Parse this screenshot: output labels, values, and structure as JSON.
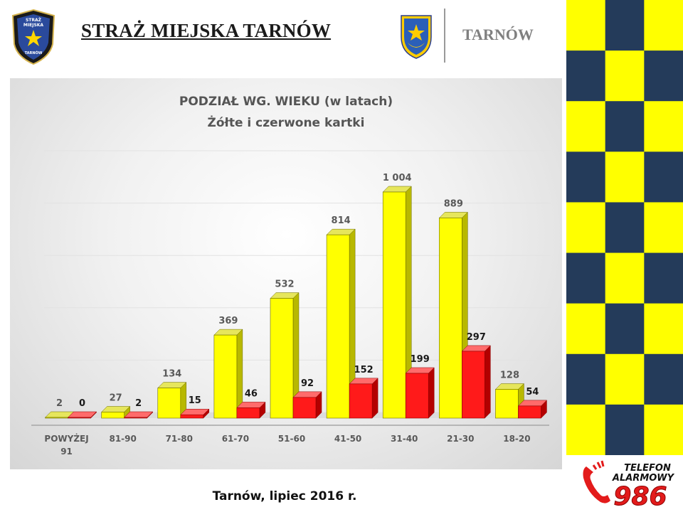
{
  "header": {
    "title": "STRAŻ MIEJSKA TARNÓW",
    "city": "TARNÓW",
    "badge_text": [
      "STRAŻ",
      "MIEJSKA",
      "TARNÓW"
    ]
  },
  "footer": {
    "date": "Tarnów, lipiec 2016 r."
  },
  "alarm": {
    "line1": "TELEFON",
    "line2": "ALARMOWY",
    "number": "986",
    "icon": "phone-icon"
  },
  "colors": {
    "navy": "#243b5a",
    "yellow": "#ffff00",
    "red": "#ff1a1a",
    "title_gray": "#555555"
  },
  "chart_data": {
    "type": "bar",
    "title": "PODZIAŁ WG. WIEKU (w latach)",
    "subtitle": "Żółte i czerwone kartki",
    "categories": [
      "POWYŻEJ 91",
      "81-90",
      "71-80",
      "61-70",
      "51-60",
      "41-50",
      "31-40",
      "21-30",
      "18-20"
    ],
    "value_labels": [
      [
        "2",
        "27",
        "134",
        "369",
        "532",
        "814",
        "1 004",
        "889",
        "128"
      ],
      [
        "0",
        "2",
        "15",
        "46",
        "92",
        "152",
        "199",
        "297",
        "54"
      ]
    ],
    "series": [
      {
        "values": [
          2,
          27,
          134,
          369,
          532,
          814,
          1004,
          889,
          128
        ],
        "color": "#ffff00"
      },
      {
        "values": [
          0,
          2,
          15,
          46,
          92,
          152,
          199,
          297,
          54
        ],
        "color": "#ff1a1a"
      }
    ],
    "ylim": [
      0,
      1004
    ],
    "grid": true,
    "style": "3d-bar"
  }
}
